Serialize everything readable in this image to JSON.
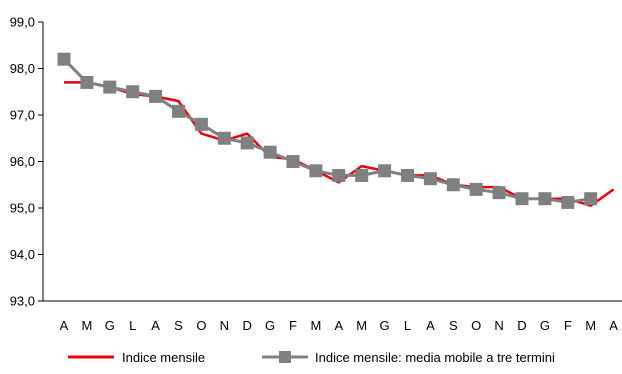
{
  "chart_data": {
    "type": "line",
    "categories": [
      "A",
      "M",
      "G",
      "L",
      "A",
      "S",
      "O",
      "N",
      "D",
      "G",
      "F",
      "M",
      "A",
      "M",
      "G",
      "L",
      "A",
      "S",
      "O",
      "N",
      "D",
      "G",
      "F",
      "M",
      "A"
    ],
    "ylim": [
      93.0,
      99.0
    ],
    "yticks": [
      "93,0",
      "94,0",
      "95,0",
      "96,0",
      "97,0",
      "98,0",
      "99,0"
    ],
    "series": [
      {
        "name": "Indice mensile",
        "color": "#e8000b",
        "marker": "none",
        "values": [
          97.7,
          97.7,
          97.6,
          97.45,
          97.4,
          97.3,
          96.6,
          96.45,
          96.6,
          96.1,
          96.05,
          95.8,
          95.55,
          95.9,
          95.8,
          95.7,
          95.7,
          95.5,
          95.45,
          95.45,
          95.2,
          95.2,
          95.2,
          95.05,
          95.4
        ]
      },
      {
        "name": "Indice mensile: media mobile a tre termini",
        "color": "#808080",
        "marker": "square",
        "values": [
          98.2,
          97.7,
          97.6,
          97.5,
          97.4,
          97.08,
          96.8,
          96.5,
          96.4,
          96.2,
          96.0,
          95.8,
          95.7,
          95.7,
          95.8,
          95.7,
          95.63,
          95.5,
          95.4,
          95.33,
          95.2,
          95.2,
          95.12,
          95.2,
          null
        ]
      }
    ],
    "grid": false,
    "legend_position": "bottom"
  }
}
